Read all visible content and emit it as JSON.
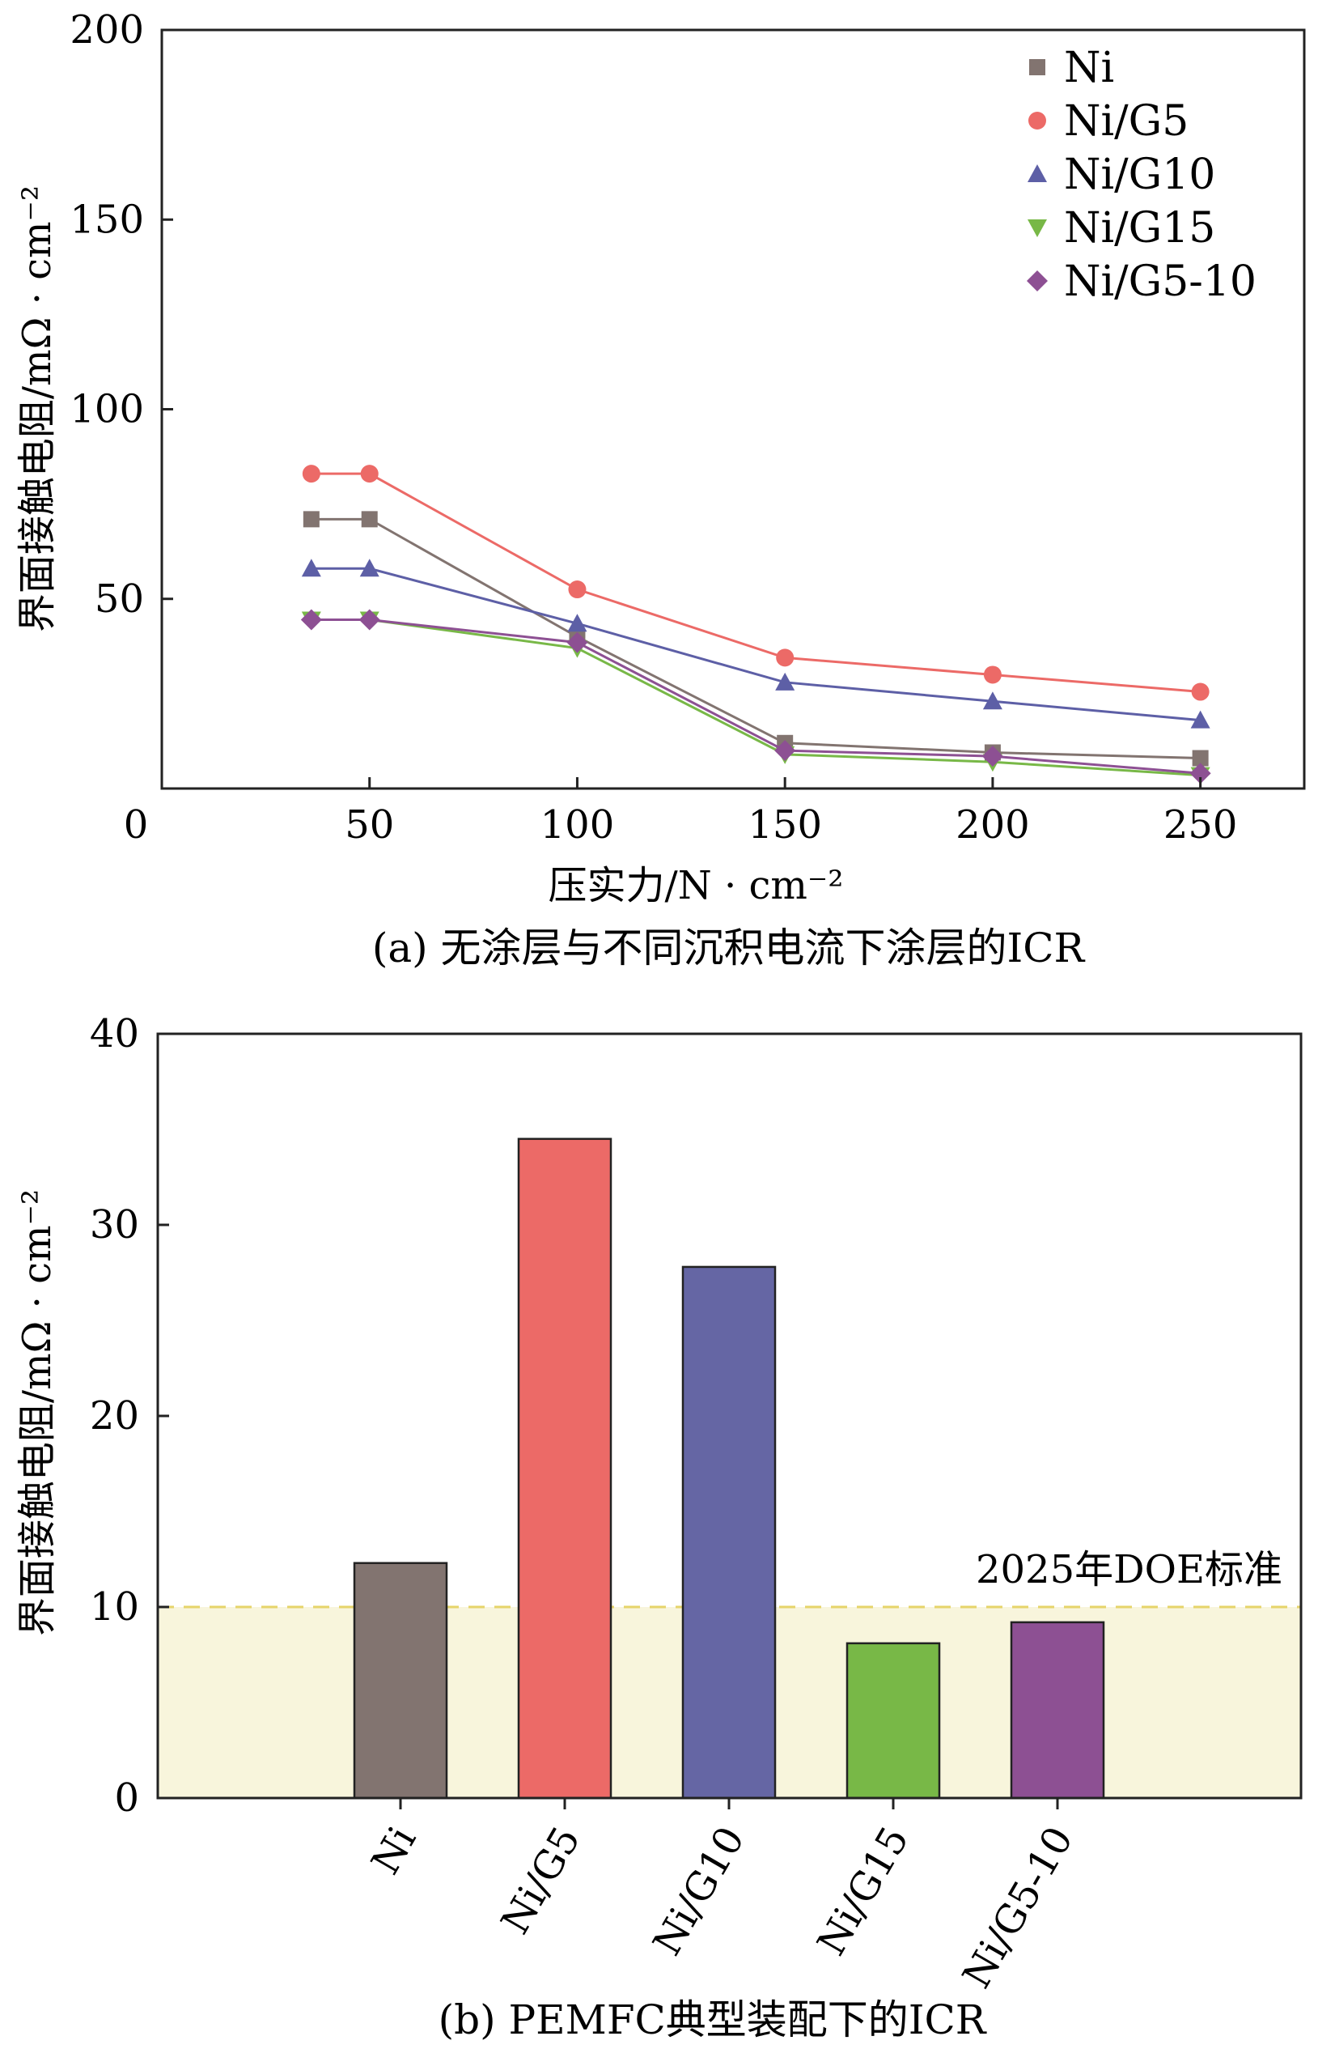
{
  "charts": [
    {
      "chart_data": {
        "type": "line",
        "caption": "(a) 无涂层与不同沉积电流下涂层的ICR",
        "xlabel": "压实力/N · cm⁻²",
        "ylabel": "界面接触电阻/mΩ · cm⁻²",
        "xlim": [
          0,
          275
        ],
        "ylim": [
          0,
          200
        ],
        "xticks": [
          0,
          50,
          100,
          150,
          200,
          250
        ],
        "yticks": [
          50,
          100,
          150,
          200
        ],
        "grid": false,
        "legend_position": "top-right",
        "x": [
          36,
          50,
          100,
          150,
          200,
          250
        ],
        "series": [
          {
            "name": "Ni",
            "marker": "square",
            "color": "#827470",
            "values": [
              71,
              71,
              40,
              12,
              9.5,
              8
            ]
          },
          {
            "name": "Ni/G5",
            "marker": "circle",
            "color": "#ec6a67",
            "values": [
              83,
              83,
              52.5,
              34.5,
              30,
              25.5
            ]
          },
          {
            "name": "Ni/G10",
            "marker": "triangle-up",
            "color": "#5d5fa6",
            "values": [
              58,
              58,
              43.5,
              28,
              23,
              18
            ]
          },
          {
            "name": "Ni/G15",
            "marker": "triangle-down",
            "color": "#78b847",
            "values": [
              44.5,
              44.5,
              37,
              9,
              7,
              3.5
            ]
          },
          {
            "name": "Ni/G5-10",
            "marker": "diamond",
            "color": "#8d5093",
            "values": [
              44.5,
              44.5,
              38.5,
              10,
              8.5,
              4
            ]
          }
        ]
      }
    },
    {
      "chart_data": {
        "type": "bar",
        "caption": "(b) PEMFC典型装配下的ICR",
        "xlabel": "",
        "ylabel": "界面接触电阻/mΩ · cm⁻²",
        "ylim": [
          0,
          40
        ],
        "yticks": [
          0,
          10,
          20,
          30,
          40
        ],
        "grid": false,
        "categories": [
          "Ni",
          "Ni/G5",
          "Ni/G10",
          "Ni/G15",
          "Ni/G5-10"
        ],
        "values": [
          12.3,
          34.5,
          27.8,
          8.1,
          9.2
        ],
        "colors": [
          "#827470",
          "#ec6a67",
          "#6566a4",
          "#78b847",
          "#8d5093"
        ],
        "reference_line": {
          "value": 10,
          "label": "2025年DOE标准",
          "color": "#e6d46a",
          "fill": "#f8f5dc"
        }
      }
    }
  ]
}
